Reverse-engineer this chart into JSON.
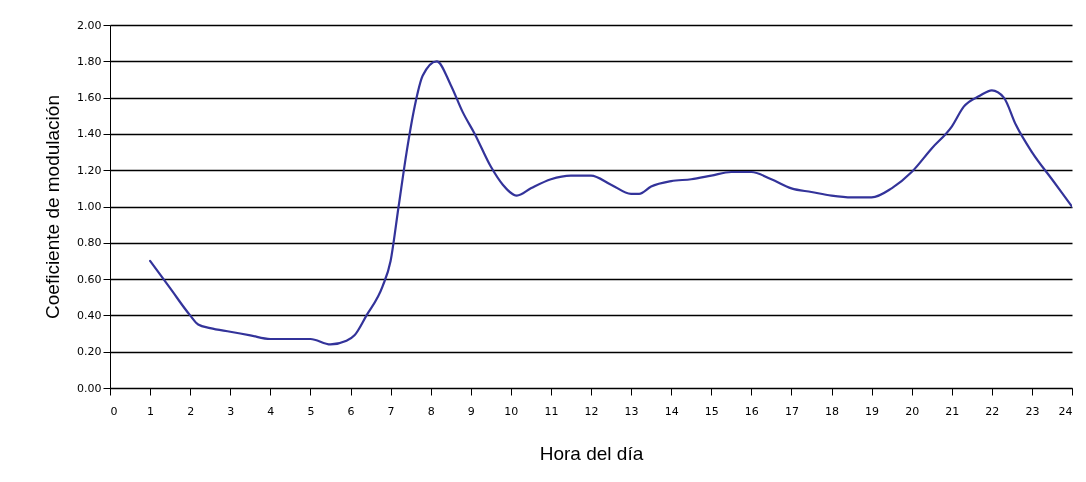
{
  "chart_data": {
    "type": "line",
    "xlabel": "Hora del día",
    "ylabel": "Coeficiente de modulación",
    "x": [
      1,
      1.5,
      2,
      2.2,
      2.5,
      3,
      3.5,
      4,
      5,
      5.5,
      5.9,
      6.1,
      6.4,
      6.8,
      7,
      7.2,
      7.4,
      7.6,
      7.8,
      8.15,
      8.5,
      8.8,
      9.1,
      9.5,
      9.8,
      10.15,
      10.5,
      11,
      11.5,
      12,
      12.5,
      13,
      13.2,
      13.5,
      14,
      14.5,
      15,
      15.5,
      16,
      16.5,
      17,
      17.5,
      18,
      18.5,
      19,
      19.5,
      20,
      20.5,
      21,
      21.3,
      21.7,
      22,
      22.3,
      22.6,
      23,
      23.5,
      24
    ],
    "series": [
      {
        "color": "#33339a",
        "values": [
          0.7,
          0.55,
          0.4,
          0.35,
          0.33,
          0.31,
          0.29,
          0.27,
          0.27,
          0.24,
          0.26,
          0.29,
          0.4,
          0.56,
          0.7,
          1.0,
          1.3,
          1.55,
          1.72,
          1.8,
          1.67,
          1.52,
          1.4,
          1.22,
          1.12,
          1.06,
          1.1,
          1.15,
          1.17,
          1.17,
          1.12,
          1.07,
          1.07,
          1.11,
          1.14,
          1.15,
          1.17,
          1.19,
          1.19,
          1.15,
          1.1,
          1.08,
          1.06,
          1.05,
          1.05,
          1.1,
          1.19,
          1.32,
          1.44,
          1.55,
          1.61,
          1.64,
          1.6,
          1.45,
          1.3,
          1.15,
          1.0
        ]
      }
    ],
    "xlim": [
      0,
      24
    ],
    "xticks": [
      0,
      1,
      2,
      3,
      4,
      5,
      6,
      7,
      8,
      9,
      10,
      11,
      12,
      13,
      14,
      15,
      16,
      17,
      18,
      19,
      20,
      21,
      22,
      23,
      24
    ],
    "ylim": [
      0,
      2
    ],
    "yticks": [
      {
        "value": 0,
        "label": "0.00"
      },
      {
        "value": 0.2,
        "label": "0.20"
      },
      {
        "value": 0.4,
        "label": "0.40"
      },
      {
        "value": 0.6,
        "label": "0.60"
      },
      {
        "value": 0.8,
        "label": "0.80"
      },
      {
        "value": 1,
        "label": "1.00"
      },
      {
        "value": 1.2,
        "label": "1.20"
      },
      {
        "value": 1.4,
        "label": "1.40"
      },
      {
        "value": 1.6,
        "label": "1.60"
      },
      {
        "value": 1.8,
        "label": "1.80"
      },
      {
        "value": 2,
        "label": "2.00"
      }
    ],
    "grid": "y",
    "marker": "none",
    "line_style": "solid"
  }
}
